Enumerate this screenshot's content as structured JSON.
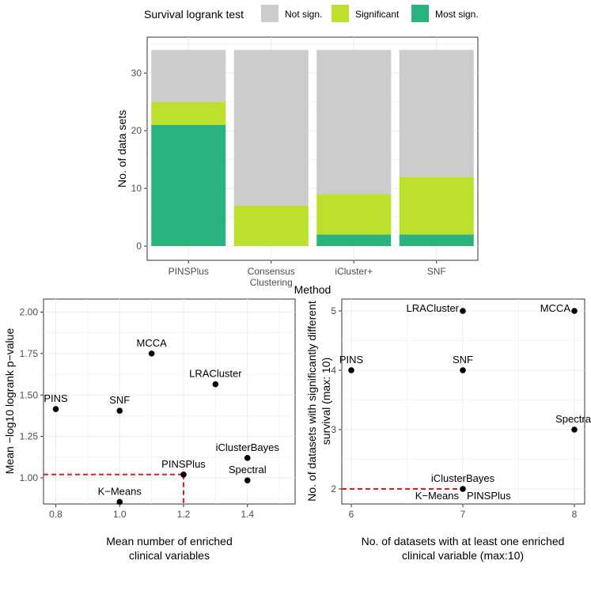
{
  "chart_data": [
    {
      "type": "bar",
      "stacked": true,
      "title": "",
      "xlabel": "Method",
      "ylabel": "No. of data sets",
      "categories": [
        "PINSPlus",
        "Consensus\nClustering",
        "iCluster+",
        "SNF"
      ],
      "series": [
        {
          "name": "Most sign.",
          "color": "#2ab27f",
          "values": [
            21,
            0,
            2,
            2
          ]
        },
        {
          "name": "Significant",
          "color": "#bde02c",
          "values": [
            4,
            7,
            7,
            10
          ]
        },
        {
          "name": "Not sign.",
          "color": "#cccccc",
          "values": [
            9,
            27,
            25,
            22
          ]
        }
      ],
      "ylim": [
        0,
        35
      ],
      "yticks": [
        0,
        10,
        20,
        30
      ],
      "legend": {
        "title": "Survival logrank test",
        "position": "top",
        "order": [
          "Not sign.",
          "Significant",
          "Most sign."
        ]
      }
    },
    {
      "type": "scatter",
      "xlabel": "Mean number of enriched\nclinical variables",
      "ylabel": "Mean −log10 logrank p−value",
      "xlim": [
        0.78,
        1.52
      ],
      "ylim": [
        0.8,
        2.05
      ],
      "xticks": [
        "0.8",
        "1.0",
        "1.2",
        "1.4"
      ],
      "yticks": [
        "1.00",
        "1.25",
        "1.50",
        "1.75",
        "2.00"
      ],
      "points": [
        {
          "label": "MCCA",
          "x": 1.1,
          "y": 1.75,
          "anchor": "above"
        },
        {
          "label": "LRACluster",
          "x": 1.3,
          "y": 1.565,
          "anchor": "above"
        },
        {
          "label": "PINS",
          "x": 0.8,
          "y": 1.415,
          "anchor": "above"
        },
        {
          "label": "SNF",
          "x": 1.0,
          "y": 1.405,
          "anchor": "above"
        },
        {
          "label": "iClusterBayes",
          "x": 1.4,
          "y": 1.12,
          "anchor": "above"
        },
        {
          "label": "PINSPlus",
          "x": 1.2,
          "y": 1.02,
          "anchor": "above"
        },
        {
          "label": "Spectral",
          "x": 1.4,
          "y": 0.985,
          "anchor": "above"
        },
        {
          "label": "K−Means",
          "x": 1.0,
          "y": 0.855,
          "anchor": "above"
        }
      ],
      "highlight": {
        "label": "PINSPlus",
        "x": 1.2,
        "y": 1.02,
        "color": "#e41a1c"
      }
    },
    {
      "type": "scatter",
      "xlabel": "No. of datasets with at least one enriched\nclinical variable (max:10)",
      "ylabel": "No. of datasets with significantly different\nsurvival (max: 10)",
      "xlim": [
        5.97,
        8.13
      ],
      "ylim": [
        1.83,
        5.13
      ],
      "xticks": [
        "6",
        "7",
        "8"
      ],
      "yticks": [
        "2",
        "3",
        "4",
        "5"
      ],
      "points": [
        {
          "label": "LRACluster",
          "x": 7,
          "y": 5,
          "anchor": "left"
        },
        {
          "label": "MCCA",
          "x": 8,
          "y": 5,
          "anchor": "left"
        },
        {
          "label": "PINS",
          "x": 6,
          "y": 4,
          "anchor": "above"
        },
        {
          "label": "SNF",
          "x": 7,
          "y": 4,
          "anchor": "above"
        },
        {
          "label": "Spectral",
          "x": 8,
          "y": 3,
          "anchor": "above"
        },
        {
          "label": "iClusterBayes",
          "x": 7,
          "y": 2,
          "anchor": "above"
        },
        {
          "label": "K−Means",
          "x": 7,
          "y": 2,
          "anchor": "below-left"
        },
        {
          "label": "PINSPlus",
          "x": 7,
          "y": 2,
          "anchor": "below-right"
        }
      ],
      "highlight": {
        "label": "PINSPlus",
        "x": 7,
        "y": 2,
        "color": "#e41a1c"
      }
    }
  ]
}
